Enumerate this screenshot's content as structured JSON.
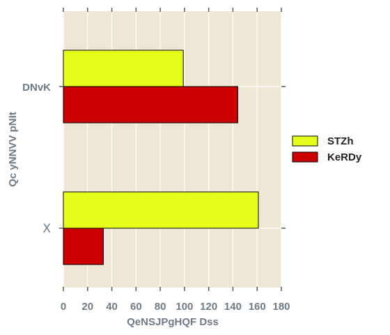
{
  "chart_data": {
    "type": "bar",
    "orientation": "horizontal",
    "categories": [
      "DNvK",
      "X"
    ],
    "series": [
      {
        "name": "STZh",
        "values": [
          99,
          161
        ],
        "color": "#e5ff1a"
      },
      {
        "name": "KeRDy",
        "values": [
          144,
          33
        ],
        "color": "#cc0000"
      }
    ],
    "xlabel": "QeNSJPgHQF Dss",
    "ylabel": "Qc yNNVV pNIt",
    "xlim": [
      0,
      180
    ],
    "xticks": [
      "0",
      "20",
      "40",
      "60",
      "80",
      "100",
      "120",
      "140",
      "160",
      "180"
    ],
    "grid": true,
    "legend_position": "right",
    "background": "#efe7d5",
    "grid_color": "#ffffff"
  }
}
